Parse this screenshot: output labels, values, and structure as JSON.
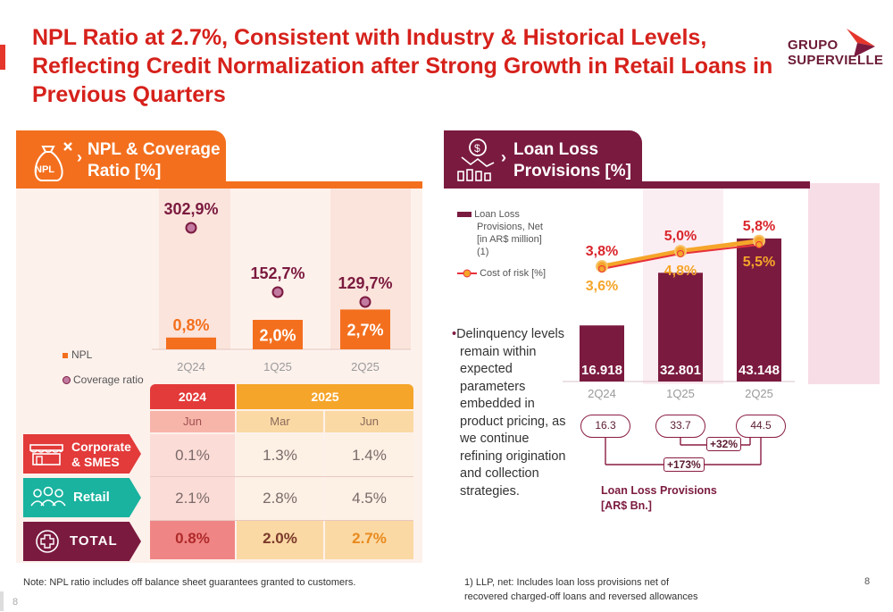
{
  "title": "NPL Ratio at 2.7%, Consistent with Industry & Historical Levels, Reflecting Credit Normalization after Strong Growth in Retail Loans in Previous Quarters",
  "logo": {
    "line1": "GRUPO",
    "line2": "SUPERVIELLE"
  },
  "left_panel": {
    "header": "NPL & Coverage Ratio [%]",
    "header_line1": "NPL & Coverage",
    "header_line2": "Ratio [%]",
    "icon_label": "NPL",
    "legend": {
      "npl": "NPL",
      "coverage": "Coverage ratio"
    },
    "colors": {
      "npl": "#f36f1e",
      "coverage": "#b5235a"
    }
  },
  "right_panel": {
    "header_line1": "Loan Loss",
    "header_line2": "Provisions [%]",
    "legend": {
      "llp": [
        "Loan Loss",
        "Provisions, Net",
        "[in AR$ million]",
        "(1)"
      ],
      "cor": "Cost of risk [%]"
    },
    "bullet": [
      "Delinquency levels",
      "remain within",
      "expected",
      "parameters",
      "embedded in",
      "product pricing, as",
      "we continue",
      "refining origination",
      "and collection",
      "strategies."
    ],
    "pills": [
      "16.3",
      "33.7",
      "44.5"
    ],
    "growth": {
      "short": "+32%",
      "long": "+173%"
    },
    "caption_line1": "Loan Loss Provisions",
    "caption_line2": "[AR$ Bn.]",
    "colors": {
      "bar": "#7b1a3f",
      "line_outer": "#f5a52a",
      "line_inner": "#e8303b"
    }
  },
  "table": {
    "years": [
      "2024",
      "2025"
    ],
    "months": [
      "Jun",
      "Mar",
      "Jun"
    ],
    "rows": [
      {
        "label1": "Corporate",
        "label2": "& SMES",
        "values": [
          "0.1%",
          "1.3%",
          "1.4%"
        ]
      },
      {
        "label1": "Retail",
        "label2": "",
        "values": [
          "2.1%",
          "2.8%",
          "4.5%"
        ]
      },
      {
        "label1": "TOTAL",
        "label2": "",
        "values": [
          "0.8%",
          "2.0%",
          "2.7%"
        ]
      }
    ]
  },
  "chart_data": [
    {
      "type": "bar",
      "title": "NPL & Coverage Ratio [%]",
      "categories": [
        "2Q24",
        "1Q25",
        "2Q25"
      ],
      "series": [
        {
          "name": "NPL",
          "type": "bar",
          "values": [
            0.8,
            2.0,
            2.7
          ],
          "labels": [
            "0,8%",
            "2,0%",
            "2,7%"
          ]
        },
        {
          "name": "Coverage ratio",
          "type": "scatter",
          "values": [
            302.9,
            152.7,
            129.7
          ],
          "labels": [
            "302,9%",
            "152,7%",
            "129,7%"
          ]
        }
      ]
    },
    {
      "type": "bar",
      "title": "Loan Loss Provisions [%]",
      "categories": [
        "2Q24",
        "1Q25",
        "2Q25"
      ],
      "series": [
        {
          "name": "Loan Loss Provisions, Net [in AR$ million] (1)",
          "type": "bar",
          "values": [
            16918,
            32801,
            43148
          ],
          "labels": [
            "16.918",
            "32.801",
            "43.148"
          ]
        },
        {
          "name": "Cost of risk [%]",
          "type": "line",
          "values": [
            3.8,
            5.0,
            5.8
          ],
          "labels": [
            "3,8%",
            "5,0%",
            "5,8%"
          ]
        },
        {
          "name": "Cost of risk [%]",
          "type": "line",
          "values": [
            3.6,
            4.8,
            5.5
          ],
          "labels": [
            "3,6%",
            "4,8%",
            "5,5%"
          ]
        }
      ]
    }
  ],
  "footnotes": {
    "left": "Note: NPL ratio includes off  balance sheet guarantees granted to customers.",
    "right_line1": "1) LLP, net: Includes loan loss provisions net of",
    "right_line2": "recovered charged-off loans and reversed allowances",
    "page_right": "8",
    "page_left": "8"
  }
}
